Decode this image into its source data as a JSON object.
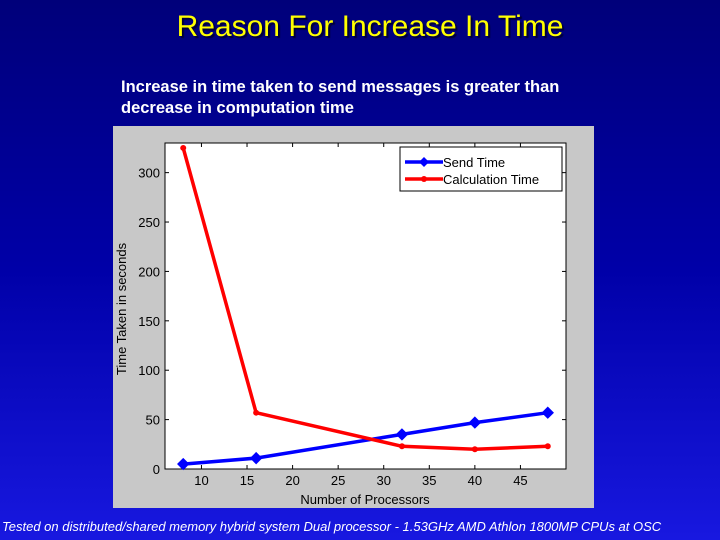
{
  "slide": {
    "title": "Reason For Increase In Time",
    "subtitle_line1": "Increase in time taken to send messages is greater than",
    "subtitle_line2": "decrease in computation time",
    "footer": "Tested on distributed/shared memory hybrid system Dual processor - 1.53GHz AMD Athlon 1800MP CPUs at OSC"
  },
  "chart_data": {
    "type": "line",
    "xlabel": "Number of Processors",
    "ylabel": "Time Taken in seconds",
    "xlim": [
      6,
      50
    ],
    "ylim": [
      0,
      330
    ],
    "xticks": [
      10,
      15,
      20,
      25,
      30,
      35,
      40,
      45
    ],
    "yticks": [
      0,
      50,
      100,
      150,
      200,
      250,
      300
    ],
    "legend_position": "top-right",
    "grid": false,
    "series": [
      {
        "name": "Send Time",
        "color": "#0000ff",
        "marker": "diamond",
        "x": [
          8,
          16,
          32,
          40,
          48
        ],
        "y": [
          5,
          11,
          35,
          47,
          57
        ]
      },
      {
        "name": "Calculation Time",
        "color": "#ff0000",
        "marker": "dot",
        "x": [
          8,
          16,
          32,
          40,
          48
        ],
        "y": [
          325,
          57,
          23,
          20,
          23
        ]
      }
    ]
  }
}
